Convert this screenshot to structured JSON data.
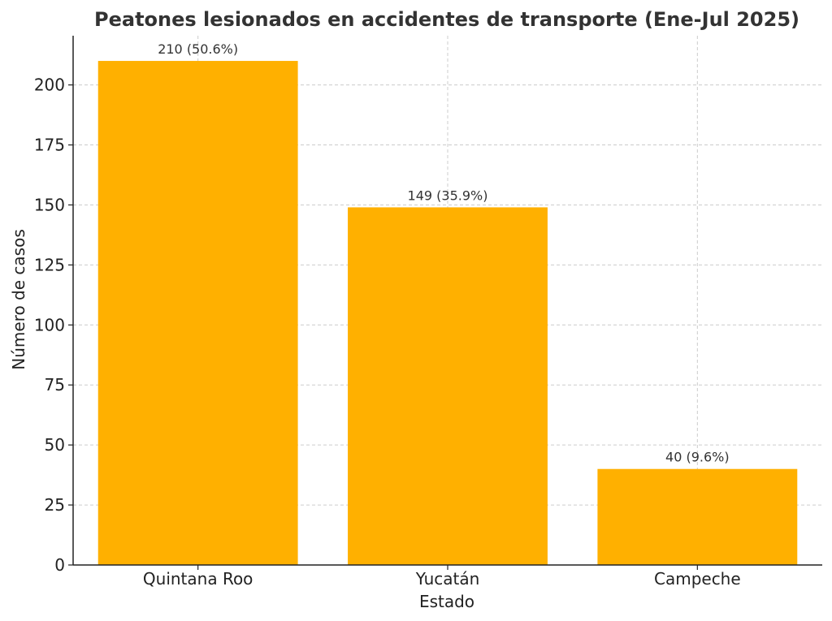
{
  "chart_data": {
    "type": "bar",
    "title": "Peatones lesionados en accidentes de transporte (Ene-Jul 2025)",
    "xlabel": "Estado",
    "ylabel": "Número de casos",
    "categories": [
      "Quintana Roo",
      "Yucatán",
      "Campeche"
    ],
    "values": [
      210,
      149,
      40
    ],
    "data_labels": [
      "210 (50.6%)",
      "149 (35.9%)",
      "40 (9.6%)"
    ],
    "yticks": [
      0,
      25,
      50,
      75,
      100,
      125,
      150,
      175,
      200
    ],
    "ylim": [
      0,
      220.5
    ],
    "grid": true,
    "bar_color": "#FFB000"
  }
}
